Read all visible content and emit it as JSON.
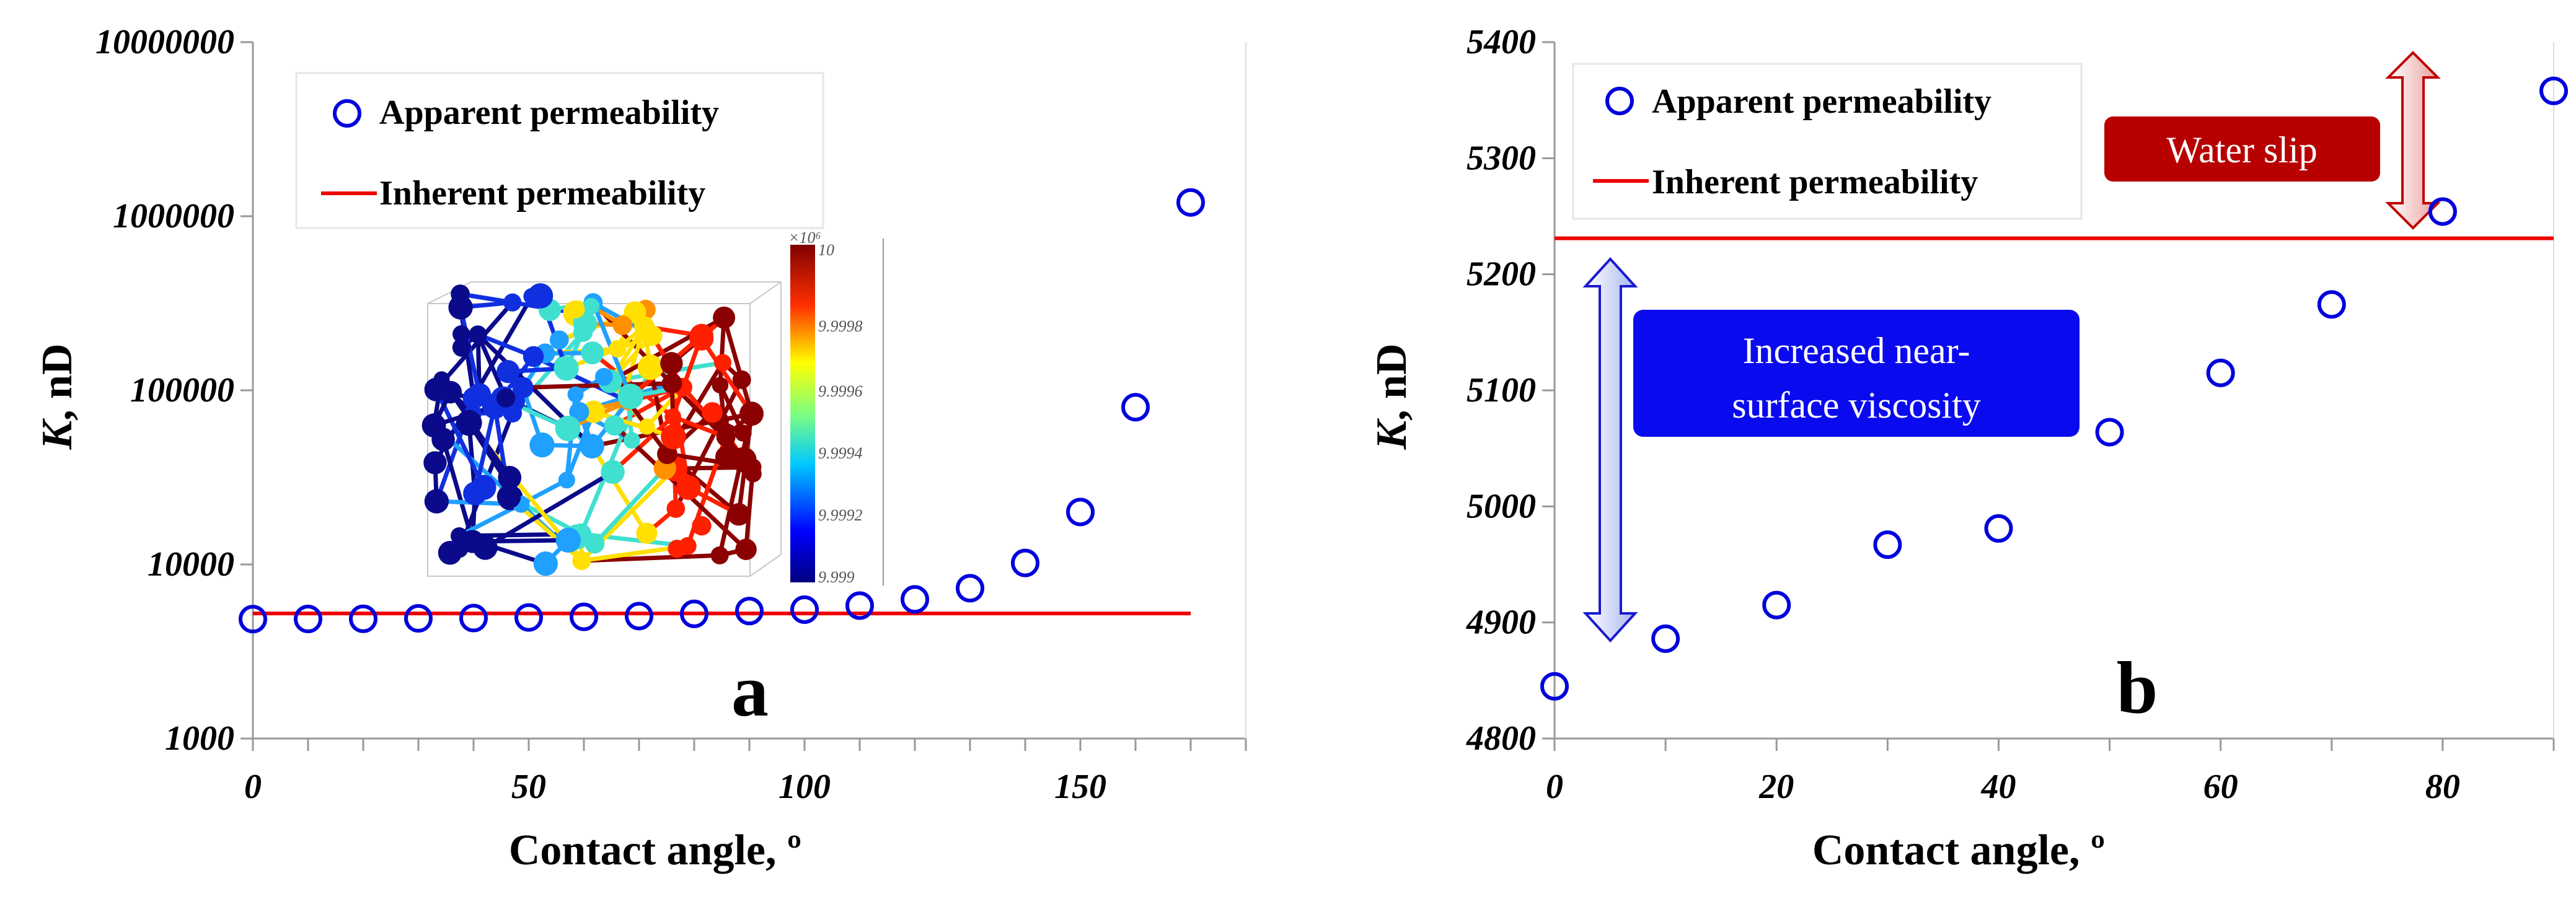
{
  "chart_data": [
    {
      "panel": "a",
      "type": "scatter",
      "xlabel": "Contact angle, º",
      "ylabel_italic": "K",
      "ylabel_rest": ", nD",
      "yscale": "log",
      "xlim": [
        0,
        180
      ],
      "ylim": [
        1000,
        10000000
      ],
      "xticks": [
        0,
        50,
        100,
        150
      ],
      "yticks": [
        1000,
        10000,
        100000,
        1000000,
        10000000
      ],
      "ytick_labels": [
        "1000",
        "10000",
        "100000",
        "1000000",
        "10000000"
      ],
      "series": [
        {
          "name": "Apparent permeability",
          "kind": "scatter",
          "color": "#0000dd",
          "x": [
            0,
            10,
            20,
            30,
            40,
            50,
            60,
            70,
            80,
            90,
            100,
            110,
            120,
            130,
            140,
            150,
            160,
            170
          ],
          "y": [
            4850,
            4860,
            4870,
            4900,
            4920,
            4960,
            5000,
            5050,
            5200,
            5400,
            5500,
            5800,
            6300,
            7300,
            10200,
            20000,
            80000,
            1200000
          ]
        },
        {
          "name": "Inherent permeability",
          "kind": "line",
          "color": "#ee0000",
          "x": [
            0,
            170
          ],
          "y": [
            5230,
            5230
          ]
        }
      ],
      "legend_position": "top-left",
      "inset": {
        "colorbar_exponent": "×10⁶",
        "colorbar_top": "10",
        "colorbar_ticks": [
          "9.9998",
          "9.9996",
          "9.9994",
          "9.9992",
          "9.999"
        ]
      }
    },
    {
      "panel": "b",
      "type": "scatter",
      "xlabel": "Contact angle, º",
      "ylabel_italic": "K",
      "ylabel_rest": ", nD",
      "yscale": "linear",
      "xlim": [
        0,
        90
      ],
      "ylim": [
        4800,
        5400
      ],
      "xticks": [
        0,
        20,
        40,
        60,
        80
      ],
      "yticks": [
        4800,
        4900,
        5000,
        5100,
        5200,
        5300,
        5400
      ],
      "ytick_labels": [
        "4800",
        "4900",
        "5000",
        "5100",
        "5200",
        "5300",
        "5400"
      ],
      "series": [
        {
          "name": "Apparent permeability",
          "kind": "scatter",
          "color": "#0000dd",
          "x": [
            0,
            10,
            20,
            30,
            40,
            50,
            60,
            70,
            80,
            90
          ],
          "y": [
            4845,
            4886,
            4915,
            4967,
            4981,
            5064,
            5115,
            5174,
            5254,
            5358
          ]
        },
        {
          "name": "Inherent permeability",
          "kind": "line",
          "color": "#ee0000",
          "x": [
            0,
            90
          ],
          "y": [
            5231,
            5231
          ]
        }
      ],
      "legend_position": "top-left",
      "annotations": {
        "water_slip": "Water slip",
        "viscosity_line1": "Increased near-",
        "viscosity_line2": "surface viscosity"
      }
    }
  ],
  "panel_labels": [
    "a",
    "b"
  ],
  "colors": {
    "apparent": "#0000dd",
    "inherent": "#ee0000",
    "water_slip_box": "#b80000",
    "viscosity_box": "#0a0aee",
    "axis": "#999999"
  }
}
